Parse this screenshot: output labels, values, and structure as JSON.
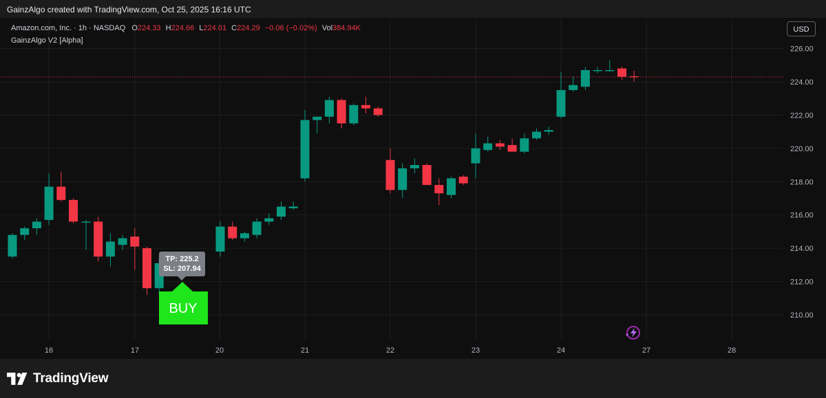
{
  "header": {
    "credit": "GainzAlgo created with TradingView.com, Oct 25, 2025 16:16 UTC"
  },
  "legend": {
    "symbol": "Amazon.com, Inc. · 1h · NASDAQ",
    "open_label": "O",
    "open_value": "224.33",
    "high_label": "H",
    "high_value": "224.66",
    "low_label": "L",
    "low_value": "224.01",
    "close_label": "C",
    "close_value": "224.29",
    "change": "−0.06 (−0.02%)",
    "vol_label": "Vol",
    "vol_value": "384.94K",
    "indicator": "GainzAlgo V2 [Alpha]"
  },
  "currency_button": "USD",
  "footer": {
    "brand": "TradingView"
  },
  "colors": {
    "up": "#089981",
    "down": "#f23645",
    "buy": "#1ee61a",
    "grid": "#1f1f1f",
    "price_line": "#f23645"
  },
  "chart_data": {
    "type": "candlestick",
    "y_ticks": [
      "226.00",
      "224.00",
      "222.00",
      "220.00",
      "218.00",
      "216.00",
      "214.00",
      "212.00",
      "210.00"
    ],
    "ylim": [
      208.8,
      227.2
    ],
    "x_ticks": [
      "16",
      "17",
      "20",
      "21",
      "22",
      "23",
      "24",
      "27",
      "28"
    ],
    "current_price": "224.29",
    "signal": {
      "label": "BUY",
      "tp": "TP: 225.2",
      "sl": "SL: 207.94",
      "candle_index": 15
    },
    "candles": [
      {
        "o": 213.5,
        "h": 214.9,
        "l": 213.4,
        "c": 214.8
      },
      {
        "o": 214.8,
        "h": 215.3,
        "l": 214.5,
        "c": 215.2
      },
      {
        "o": 215.2,
        "h": 215.8,
        "l": 214.8,
        "c": 215.6
      },
      {
        "o": 215.7,
        "h": 218.5,
        "l": 215.4,
        "c": 217.7
      },
      {
        "o": 217.7,
        "h": 218.6,
        "l": 216.8,
        "c": 216.9
      },
      {
        "o": 216.9,
        "h": 217.0,
        "l": 215.5,
        "c": 215.6
      },
      {
        "o": 215.6,
        "h": 215.7,
        "l": 213.9,
        "c": 215.6
      },
      {
        "o": 215.6,
        "h": 215.9,
        "l": 213.2,
        "c": 213.5
      },
      {
        "o": 213.5,
        "h": 214.9,
        "l": 212.9,
        "c": 214.4
      },
      {
        "o": 214.2,
        "h": 214.8,
        "l": 213.9,
        "c": 214.6
      },
      {
        "o": 214.7,
        "h": 215.2,
        "l": 212.7,
        "c": 214.1
      },
      {
        "o": 214.0,
        "h": 214.1,
        "l": 211.2,
        "c": 211.6
      },
      {
        "o": 211.6,
        "h": 213.4,
        "l": 211.3,
        "c": 213.1
      },
      {
        "o": 213.0,
        "h": 213.5,
        "l": 212.4,
        "c": 212.6
      },
      {
        "o": 212.8,
        "h": 213.2,
        "l": 212.5,
        "c": 213.0
      },
      {
        "o": 213.2,
        "h": 213.4,
        "l": 212.7,
        "c": 212.9
      },
      {
        "o": 213.8,
        "h": 215.6,
        "l": 213.5,
        "c": 215.3
      },
      {
        "o": 215.3,
        "h": 215.6,
        "l": 214.5,
        "c": 214.6
      },
      {
        "o": 214.6,
        "h": 215.0,
        "l": 214.4,
        "c": 214.9
      },
      {
        "o": 214.8,
        "h": 215.8,
        "l": 214.6,
        "c": 215.6
      },
      {
        "o": 215.6,
        "h": 216.1,
        "l": 215.4,
        "c": 215.8
      },
      {
        "o": 215.9,
        "h": 216.8,
        "l": 215.7,
        "c": 216.5
      },
      {
        "o": 216.4,
        "h": 216.8,
        "l": 216.3,
        "c": 216.5
      },
      {
        "o": 218.2,
        "h": 222.3,
        "l": 218.0,
        "c": 221.7
      },
      {
        "o": 221.7,
        "h": 221.9,
        "l": 220.9,
        "c": 221.9
      },
      {
        "o": 221.9,
        "h": 223.1,
        "l": 221.5,
        "c": 222.9
      },
      {
        "o": 222.9,
        "h": 223.0,
        "l": 221.2,
        "c": 221.5
      },
      {
        "o": 221.5,
        "h": 222.7,
        "l": 221.4,
        "c": 222.6
      },
      {
        "o": 222.6,
        "h": 223.1,
        "l": 222.1,
        "c": 222.4
      },
      {
        "o": 222.4,
        "h": 222.5,
        "l": 221.9,
        "c": 222.0
      },
      {
        "o": 219.3,
        "h": 220.0,
        "l": 217.3,
        "c": 217.5
      },
      {
        "o": 217.5,
        "h": 219.1,
        "l": 217.0,
        "c": 218.8
      },
      {
        "o": 218.8,
        "h": 219.4,
        "l": 218.5,
        "c": 219.0
      },
      {
        "o": 219.0,
        "h": 219.1,
        "l": 217.8,
        "c": 217.8
      },
      {
        "o": 217.8,
        "h": 218.2,
        "l": 216.6,
        "c": 217.3
      },
      {
        "o": 217.2,
        "h": 218.3,
        "l": 217.0,
        "c": 218.2
      },
      {
        "o": 218.3,
        "h": 218.4,
        "l": 217.8,
        "c": 217.9
      },
      {
        "o": 219.1,
        "h": 220.9,
        "l": 218.2,
        "c": 220.0
      },
      {
        "o": 219.9,
        "h": 220.7,
        "l": 219.8,
        "c": 220.3
      },
      {
        "o": 220.3,
        "h": 220.5,
        "l": 219.9,
        "c": 220.1
      },
      {
        "o": 220.2,
        "h": 220.6,
        "l": 219.8,
        "c": 219.8
      },
      {
        "o": 219.8,
        "h": 220.9,
        "l": 219.7,
        "c": 220.6
      },
      {
        "o": 220.6,
        "h": 221.2,
        "l": 220.5,
        "c": 221.0
      },
      {
        "o": 221.0,
        "h": 221.3,
        "l": 220.8,
        "c": 221.1
      },
      {
        "o": 221.9,
        "h": 224.6,
        "l": 221.8,
        "c": 223.5
      },
      {
        "o": 223.5,
        "h": 224.3,
        "l": 223.4,
        "c": 223.8
      },
      {
        "o": 223.7,
        "h": 224.9,
        "l": 223.5,
        "c": 224.7
      },
      {
        "o": 224.7,
        "h": 224.9,
        "l": 224.5,
        "c": 224.7
      },
      {
        "o": 224.7,
        "h": 225.3,
        "l": 224.6,
        "c": 224.7
      },
      {
        "o": 224.8,
        "h": 224.9,
        "l": 224.1,
        "c": 224.3
      },
      {
        "o": 224.33,
        "h": 224.66,
        "l": 224.01,
        "c": 224.29
      }
    ]
  }
}
